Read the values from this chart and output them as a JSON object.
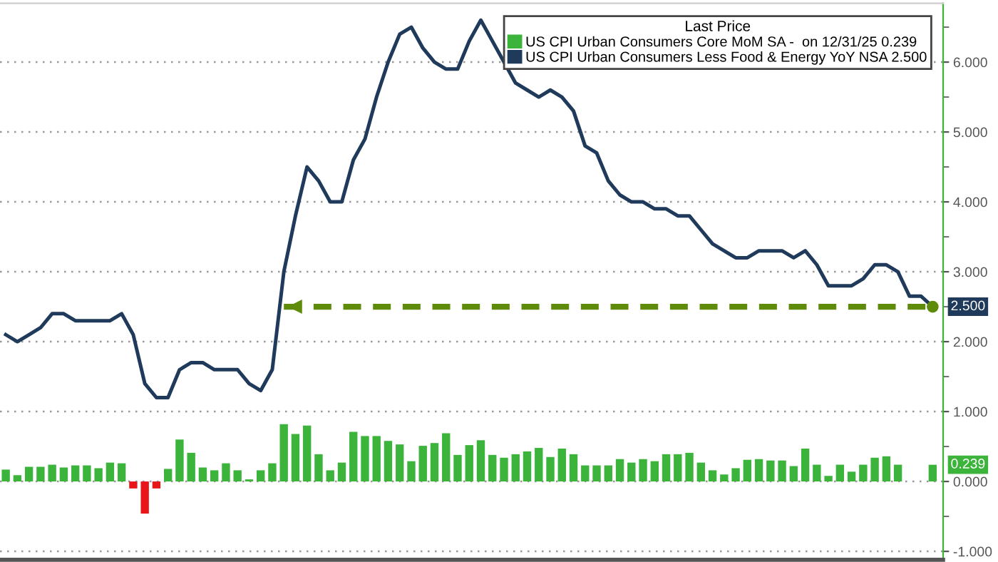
{
  "chart_data": {
    "type": "line",
    "legend_title": "Last Price",
    "categories": [
      null,
      null,
      null,
      null,
      null,
      null,
      null,
      null,
      null,
      null,
      null,
      null,
      null,
      null,
      null,
      null,
      null,
      null,
      null,
      null,
      null,
      null,
      null,
      null,
      null,
      null,
      null,
      null,
      null,
      null,
      null,
      null,
      null,
      null,
      null,
      null,
      null,
      null,
      null,
      null,
      null,
      null,
      null,
      null,
      null,
      null,
      null,
      null,
      null,
      null,
      null,
      null,
      null,
      null,
      null,
      null,
      null,
      null,
      null,
      null,
      null,
      null,
      null,
      null,
      null,
      null,
      null,
      null,
      null,
      null,
      null,
      null,
      null,
      null,
      null,
      null,
      null,
      null,
      null,
      null,
      null
    ],
    "series": [
      {
        "name": "US CPI Urban Consumers Core MoM SA -  on 12/31/25 0.239",
        "type": "bar",
        "color": "#3cb43c",
        "colors": [
          "#3cb43c",
          "#3cb43c",
          "#3cb43c",
          "#3cb43c",
          "#3cb43c",
          "#3cb43c",
          "#3cb43c",
          "#3cb43c",
          "#3cb43c",
          "#3cb43c",
          "#3cb43c",
          "#e8151b",
          "#e8151b",
          "#e8151b",
          "#3cb43c",
          "#3cb43c",
          "#3cb43c",
          "#3cb43c",
          "#3cb43c",
          "#3cb43c",
          "#3cb43c",
          "#3cb43c",
          "#3cb43c",
          "#3cb43c",
          "#3cb43c",
          "#3cb43c",
          "#3cb43c",
          "#3cb43c",
          "#3cb43c",
          "#3cb43c",
          "#3cb43c",
          "#3cb43c",
          "#3cb43c",
          "#3cb43c",
          "#3cb43c",
          "#3cb43c",
          "#3cb43c",
          "#3cb43c",
          "#3cb43c",
          "#3cb43c",
          "#3cb43c",
          "#3cb43c",
          "#3cb43c",
          "#3cb43c",
          "#3cb43c",
          "#3cb43c",
          "#3cb43c",
          "#3cb43c",
          "#3cb43c",
          "#3cb43c",
          "#3cb43c",
          "#3cb43c",
          "#3cb43c",
          "#3cb43c",
          "#3cb43c",
          "#3cb43c",
          "#3cb43c",
          "#3cb43c",
          "#3cb43c",
          "#3cb43c",
          "#3cb43c",
          "#3cb43c",
          "#3cb43c",
          "#3cb43c",
          "#3cb43c",
          "#3cb43c",
          "#3cb43c",
          "#3cb43c",
          "#3cb43c",
          "#3cb43c",
          "#3cb43c",
          "#3cb43c",
          "#3cb43c",
          "#3cb43c",
          "#3cb43c",
          "#3cb43c",
          "#3cb43c",
          "#3cb43c",
          "#3cb43c",
          "#3cb43c",
          "#3cb43c"
        ],
        "values": [
          0.17,
          0.09,
          0.21,
          0.21,
          0.24,
          0.2,
          0.23,
          0.23,
          0.19,
          0.27,
          0.26,
          -0.1,
          -0.46,
          -0.1,
          0.18,
          0.6,
          0.41,
          0.2,
          0.16,
          0.26,
          0.16,
          0.03,
          0.16,
          0.26,
          0.82,
          0.68,
          0.8,
          0.39,
          0.16,
          0.27,
          0.71,
          0.65,
          0.65,
          0.58,
          0.53,
          0.29,
          0.51,
          0.55,
          0.69,
          0.38,
          0.52,
          0.59,
          0.38,
          0.34,
          0.39,
          0.43,
          0.48,
          0.35,
          0.47,
          0.39,
          0.23,
          0.23,
          0.23,
          0.32,
          0.27,
          0.32,
          0.29,
          0.39,
          0.39,
          0.41,
          0.27,
          0.16,
          0.1,
          0.19,
          0.31,
          0.32,
          0.3,
          0.3,
          0.22,
          0.47,
          0.24,
          0.08,
          0.24,
          0.14,
          0.24,
          0.34,
          0.36,
          0.24,
          null,
          null,
          0.239
        ],
        "value_labels": [
          null,
          null,
          null,
          null,
          null,
          null,
          null,
          null,
          null,
          null,
          null,
          null,
          null,
          null,
          null,
          null,
          null,
          null,
          null,
          null,
          null,
          null,
          null,
          null,
          null,
          null,
          null,
          null,
          null,
          null,
          null,
          null,
          null,
          null,
          null,
          null,
          null,
          null,
          null,
          null,
          null,
          null,
          null,
          null,
          null,
          null,
          null,
          null,
          null,
          null,
          null,
          null,
          null,
          null,
          null,
          null,
          null,
          null,
          null,
          null,
          null,
          null,
          null,
          null,
          null,
          null,
          null,
          null,
          null,
          null,
          null,
          null,
          null,
          null,
          null,
          null,
          null,
          null,
          null,
          null,
          "0.239"
        ]
      },
      {
        "name": "US CPI Urban Consumers Less Food & Energy YoY NSA 2.500",
        "color": "#1f3a5a",
        "values": [
          2.1,
          2.0,
          2.1,
          2.2,
          2.4,
          2.4,
          2.3,
          2.3,
          2.3,
          2.3,
          2.4,
          2.1,
          1.4,
          1.2,
          1.2,
          1.6,
          1.7,
          1.7,
          1.6,
          1.6,
          1.6,
          1.4,
          1.3,
          1.6,
          3.0,
          3.8,
          4.5,
          4.3,
          4.0,
          4.0,
          4.6,
          4.9,
          5.5,
          6.0,
          6.4,
          6.5,
          6.2,
          6.0,
          5.9,
          5.9,
          6.3,
          6.6,
          6.3,
          6.0,
          5.7,
          5.6,
          5.5,
          5.6,
          5.5,
          5.3,
          4.8,
          4.7,
          4.3,
          4.1,
          4.0,
          4.0,
          3.9,
          3.9,
          3.8,
          3.8,
          3.6,
          3.4,
          3.3,
          3.2,
          3.2,
          3.3,
          3.3,
          3.3,
          3.2,
          3.3,
          3.1,
          2.8,
          2.8,
          2.8,
          2.9,
          3.1,
          3.1,
          3.0,
          2.65,
          2.65,
          2.5
        ],
        "value_labels": [
          null,
          null,
          null,
          null,
          null,
          null,
          null,
          null,
          null,
          null,
          null,
          null,
          null,
          null,
          null,
          null,
          null,
          null,
          null,
          null,
          null,
          null,
          null,
          null,
          null,
          null,
          null,
          null,
          null,
          null,
          null,
          null,
          null,
          null,
          null,
          null,
          null,
          null,
          null,
          null,
          null,
          null,
          null,
          null,
          null,
          null,
          null,
          null,
          null,
          null,
          null,
          null,
          null,
          null,
          null,
          null,
          null,
          null,
          null,
          null,
          null,
          null,
          null,
          null,
          null,
          null,
          null,
          null,
          null,
          null,
          null,
          null,
          null,
          null,
          null,
          null,
          null,
          null,
          null,
          null,
          "2.500"
        ]
      },
      {
        "type": "line",
        "color": "#5e8c0a",
        "line_style": "dashed",
        "values": [
          null,
          null,
          null,
          null,
          null,
          null,
          null,
          null,
          null,
          null,
          null,
          null,
          null,
          null,
          null,
          null,
          null,
          null,
          null,
          null,
          null,
          null,
          null,
          null,
          2.5,
          2.5,
          2.5,
          2.5,
          2.5,
          2.5,
          2.5,
          2.5,
          2.5,
          2.5,
          2.5,
          2.5,
          2.5,
          2.5,
          2.5,
          2.5,
          2.5,
          2.5,
          2.5,
          2.5,
          2.5,
          2.5,
          2.5,
          2.5,
          2.5,
          2.5,
          2.5,
          2.5,
          2.5,
          2.5,
          2.5,
          2.5,
          2.5,
          2.5,
          2.5,
          2.5,
          2.5,
          2.5,
          2.5,
          2.5,
          2.5,
          2.5,
          2.5,
          2.5,
          2.5,
          2.5,
          2.5,
          2.5,
          2.5,
          2.5,
          2.5,
          2.5,
          2.5,
          2.5,
          2.5,
          2.5,
          2.5
        ]
      }
    ],
    "ylim": [
      -1.12,
      6.84
    ],
    "yticks": [
      {
        "value": -1,
        "label": "-1.000"
      },
      {
        "value": 0,
        "label": "0.000"
      },
      {
        "value": 1,
        "label": "1.000"
      },
      {
        "value": 2,
        "label": "2.000"
      },
      {
        "value": 3,
        "label": "3.000"
      },
      {
        "value": 4,
        "label": "4.000"
      },
      {
        "value": 5,
        "label": "5.000"
      },
      {
        "value": 6,
        "label": "6.000"
      }
    ],
    "grid": "y",
    "legend": "top right"
  }
}
